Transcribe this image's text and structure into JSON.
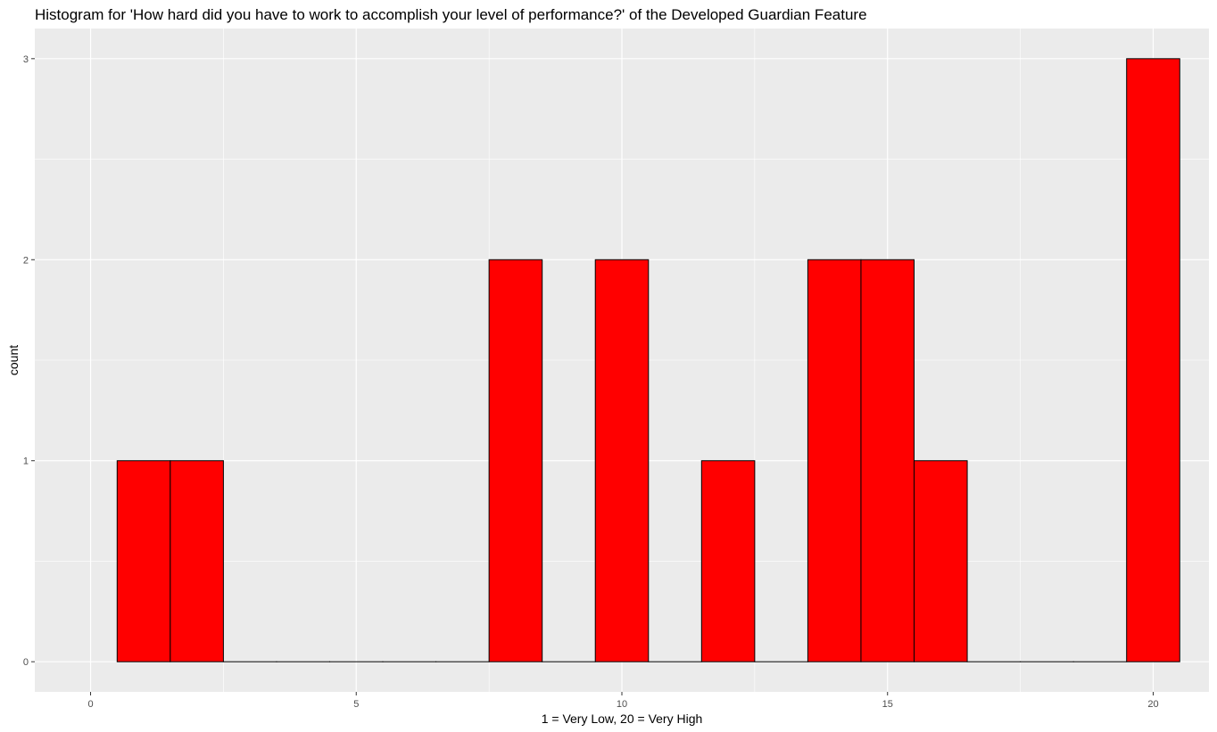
{
  "chart_data": {
    "type": "bar",
    "title": "Histogram for 'How hard did you have to work to accomplish your level of performance?' of the Developed Guardian Feature",
    "xlabel": "1 = Very Low, 20 = Very High",
    "ylabel": "count",
    "x": [
      1,
      2,
      3,
      4,
      5,
      6,
      7,
      8,
      9,
      10,
      11,
      12,
      13,
      14,
      15,
      16,
      17,
      18,
      19,
      20
    ],
    "values": [
      1,
      1,
      0,
      0,
      0,
      0,
      0,
      2,
      0,
      2,
      0,
      1,
      0,
      2,
      2,
      1,
      0,
      0,
      0,
      3
    ],
    "bin_width": 1,
    "xlim": [
      -1.05,
      21.05
    ],
    "ylim": [
      -0.15,
      3.15
    ],
    "x_ticks": [
      0,
      5,
      10,
      15,
      20
    ],
    "y_ticks": [
      0,
      1,
      2,
      3
    ],
    "grid": true,
    "colors": {
      "fill": "#ff0000",
      "outline": "#000000",
      "panel": "#ebebeb",
      "grid": "#ffffff"
    }
  }
}
